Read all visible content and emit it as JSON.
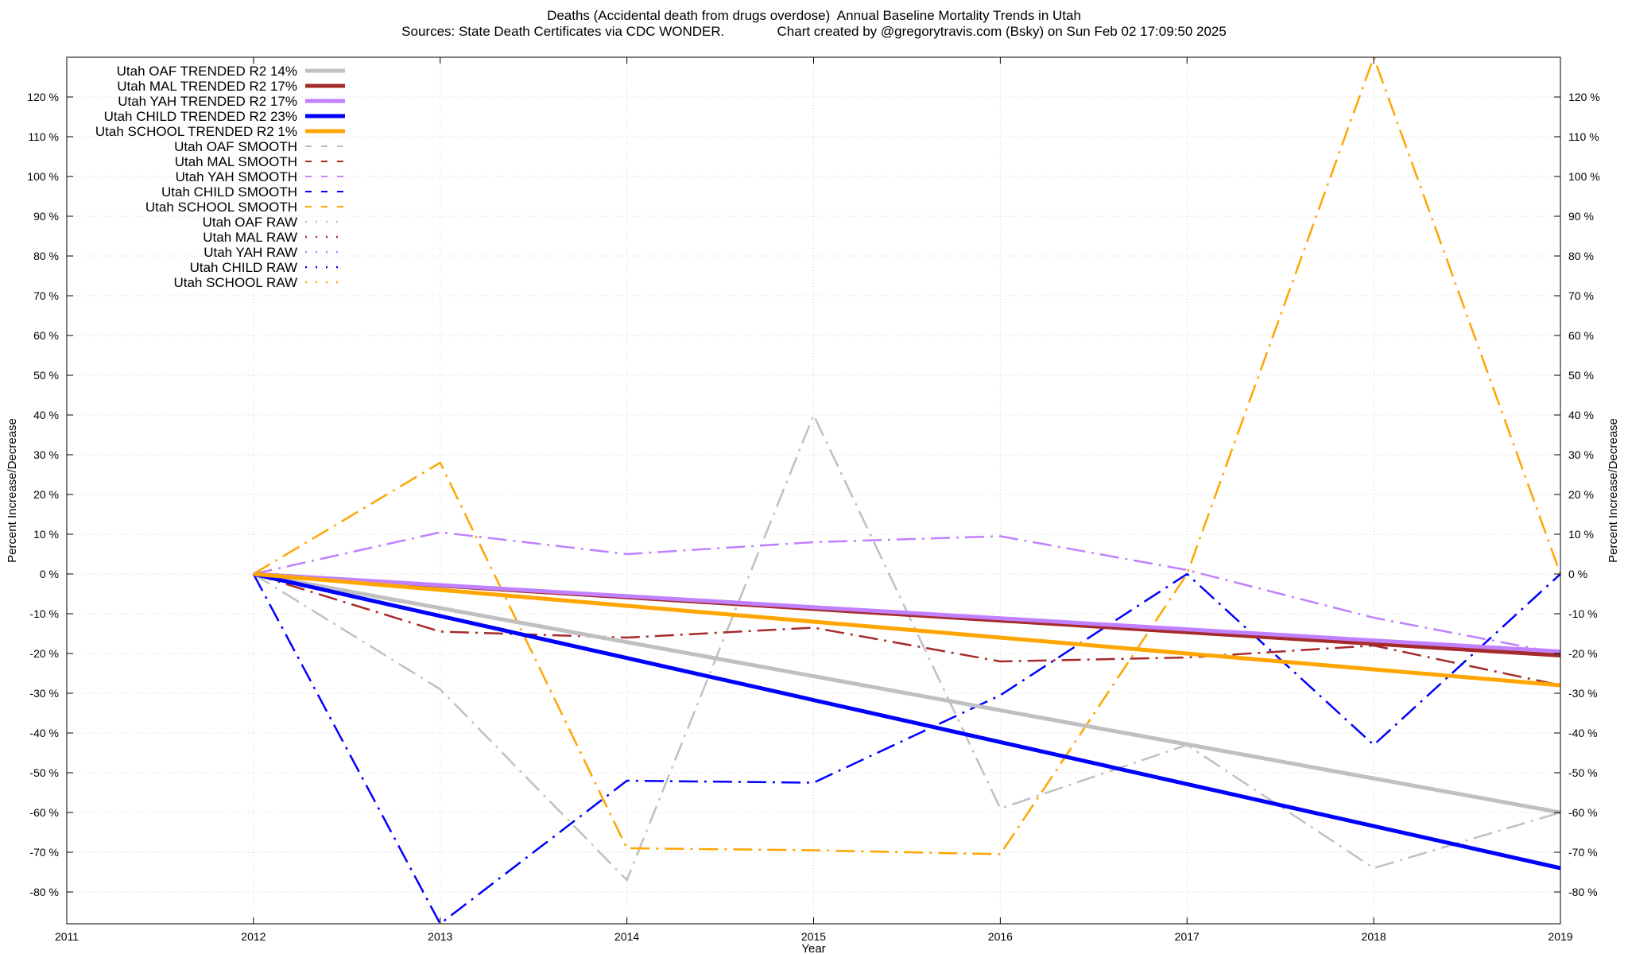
{
  "chart_data": {
    "type": "line",
    "title": "Deaths (Accidental death from drugs overdose)  Annual Baseline Mortality Trends in Utah",
    "subtitle": "Sources: State Death Certificates via CDC WONDER.              Chart created by @gregorytravis.com (Bsky) on Sun Feb 02 17:09:50 2025",
    "xlabel": "Year",
    "ylabel": "Percent Increase/Decrease",
    "y2label": "Percent Increase/Decrease",
    "xlim": [
      2011,
      2019
    ],
    "ylim": [
      -88,
      130
    ],
    "x_ticks": [
      "2011",
      "2012",
      "2013",
      "2014",
      "2015",
      "2016",
      "2017",
      "2018",
      "2019"
    ],
    "y_ticks": [
      {
        "value": 120,
        "label": "120 %"
      },
      {
        "value": 110,
        "label": "110 %"
      },
      {
        "value": 100,
        "label": "100 %"
      },
      {
        "value": 90,
        "label": "90 %"
      },
      {
        "value": 80,
        "label": "80 %"
      },
      {
        "value": 70,
        "label": "70 %"
      },
      {
        "value": 60,
        "label": "60 %"
      },
      {
        "value": 50,
        "label": "50 %"
      },
      {
        "value": 40,
        "label": "40 %"
      },
      {
        "value": 30,
        "label": "30 %"
      },
      {
        "value": 20,
        "label": "20 %"
      },
      {
        "value": 10,
        "label": "10 %"
      },
      {
        "value": 0,
        "label": "0 %"
      },
      {
        "value": -10,
        "label": "-10 %"
      },
      {
        "value": -20,
        "label": "-20 %"
      },
      {
        "value": -30,
        "label": "-30 %"
      },
      {
        "value": -40,
        "label": "-40 %"
      },
      {
        "value": -50,
        "label": "-50 %"
      },
      {
        "value": -60,
        "label": "-60 %"
      },
      {
        "value": -70,
        "label": "-70 %"
      },
      {
        "value": -80,
        "label": "-80 %"
      }
    ],
    "grid": true,
    "legend_position": "top-left",
    "x": [
      2012,
      2013,
      2014,
      2015,
      2016,
      2017,
      2018,
      2019
    ],
    "series": [
      {
        "name": "Utah OAF TRENDED R2  14%",
        "style": "trend",
        "color": "#c0c0c0",
        "x": [
          2012,
          2019
        ],
        "values": [
          0,
          -60
        ]
      },
      {
        "name": "Utah MAL TRENDED R2  17%",
        "style": "trend",
        "color": "#a52a2a",
        "x": [
          2012,
          2019
        ],
        "values": [
          0,
          -20.5
        ]
      },
      {
        "name": "Utah YAH TRENDED R2  17%",
        "style": "trend",
        "color": "#c080ff",
        "x": [
          2012,
          2019
        ],
        "values": [
          0,
          -19.5
        ]
      },
      {
        "name": "Utah CHILD TRENDED R2  23%",
        "style": "trend",
        "color": "#0000ff",
        "x": [
          2012,
          2019
        ],
        "values": [
          0,
          -74
        ]
      },
      {
        "name": "Utah SCHOOL TRENDED R2   1%",
        "style": "trend",
        "color": "#ffa500",
        "x": [
          2012,
          2019
        ],
        "values": [
          0,
          -28
        ]
      },
      {
        "name": "Utah OAF SMOOTH",
        "style": "smooth",
        "color": "#c0c0c0",
        "x": [
          2012,
          2013,
          2014,
          2015,
          2016,
          2017,
          2018,
          2019
        ],
        "values": [
          0,
          -29,
          -77,
          40,
          -59,
          -43,
          -74,
          -60
        ]
      },
      {
        "name": "Utah MAL SMOOTH",
        "style": "smooth",
        "color": "#a52a2a",
        "x": [
          2012,
          2013,
          2014,
          2015,
          2016,
          2017,
          2018,
          2019
        ],
        "values": [
          0,
          -14.5,
          -16,
          -13.5,
          -22,
          -21,
          -18,
          -28
        ]
      },
      {
        "name": "Utah YAH SMOOTH",
        "style": "smooth",
        "color": "#c080ff",
        "x": [
          2012,
          2013,
          2014,
          2015,
          2016,
          2017,
          2018,
          2019
        ],
        "values": [
          0,
          10.5,
          5,
          8,
          9.5,
          1,
          -11,
          -20
        ]
      },
      {
        "name": "Utah CHILD SMOOTH",
        "style": "smooth",
        "color": "#0000ff",
        "x": [
          2012,
          2013,
          2014,
          2015,
          2016,
          2017,
          2018,
          2019
        ],
        "values": [
          0,
          -88,
          -52,
          -52.5,
          -30.5,
          0,
          -43,
          0
        ]
      },
      {
        "name": "Utah SCHOOL SMOOTH",
        "style": "smooth",
        "color": "#ffa500",
        "x": [
          2012,
          2013,
          2014,
          2015,
          2016,
          2017,
          2018,
          2019
        ],
        "values": [
          0,
          28,
          -69,
          -69.5,
          -70.5,
          0,
          130,
          0
        ]
      },
      {
        "name": "Utah OAF RAW",
        "style": "raw",
        "color": "#c0c0c0",
        "x": [],
        "values": []
      },
      {
        "name": "Utah MAL RAW",
        "style": "raw",
        "color": "#a52a2a",
        "x": [],
        "values": []
      },
      {
        "name": "Utah YAH RAW",
        "style": "raw",
        "color": "#c080ff",
        "x": [],
        "values": []
      },
      {
        "name": "Utah CHILD RAW",
        "style": "raw",
        "color": "#0000ff",
        "x": [],
        "values": []
      },
      {
        "name": "Utah SCHOOL RAW",
        "style": "raw",
        "color": "#ffa500",
        "x": [],
        "values": []
      }
    ]
  }
}
